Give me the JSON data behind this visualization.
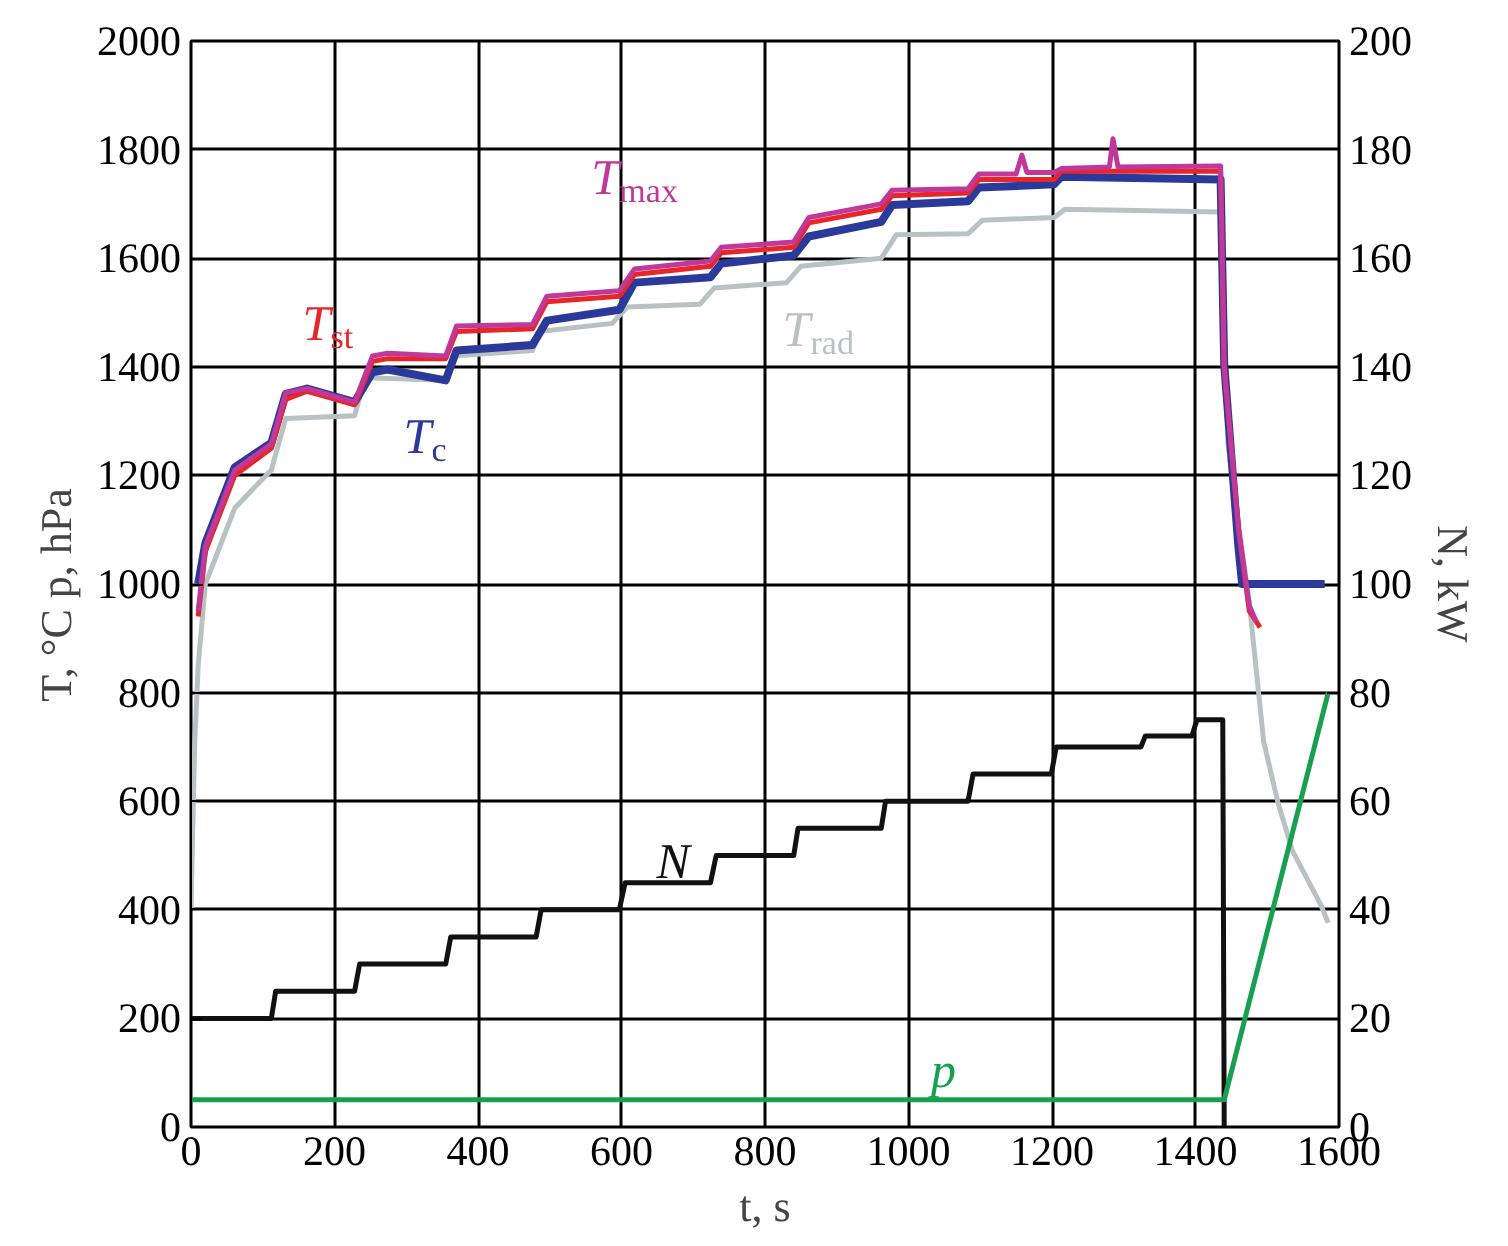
{
  "chart_data": {
    "type": "line",
    "xlabel": "t, s",
    "ylabel": "T, °C   p, hPa",
    "y2label": "N, kW",
    "xlim": [
      0,
      1600
    ],
    "xticks": [
      0,
      200,
      400,
      600,
      800,
      1000,
      1200,
      1400,
      1600
    ],
    "ylim": [
      0,
      2000
    ],
    "yticks": [
      0,
      200,
      400,
      600,
      800,
      1000,
      1200,
      1400,
      1600,
      1800,
      2000
    ],
    "y2lim": [
      0,
      200
    ],
    "y2ticks": [
      0,
      20,
      40,
      60,
      80,
      100,
      120,
      140,
      160,
      180,
      200
    ],
    "grid": true,
    "series": [
      {
        "name": "T$_{rad}$",
        "color": "#b8c2c2",
        "x": [
          0,
          5,
          10,
          20,
          61,
          112,
          132,
          228,
          243,
          355,
          365,
          476,
          486,
          587,
          608,
          709,
          729,
          830,
          850,
          962,
          983,
          1083,
          1103,
          1203,
          1218,
          1435,
          1445,
          1475,
          1495,
          1515,
          1535,
          1575,
          1585
        ],
        "values": [
          400,
          700,
          850,
          1000,
          1140,
          1210,
          1305,
          1310,
          1380,
          1375,
          1420,
          1430,
          1465,
          1480,
          1510,
          1515,
          1545,
          1555,
          1585,
          1600,
          1643,
          1645,
          1670,
          1675,
          1690,
          1685,
          1260,
          965,
          710,
          597,
          509,
          408,
          376
        ]
      },
      {
        "name": "T$_{c}$",
        "color": "#2b3a9a",
        "x": [
          10,
          20,
          61,
          112,
          132,
          162,
          228,
          253,
          274,
          355,
          370,
          476,
          496,
          597,
          618,
          724,
          739,
          840,
          861,
          962,
          977,
          1083,
          1098,
          1203,
          1213,
          1435,
          1440,
          1460,
          1465,
          1580
        ],
        "values": [
          1000,
          1075,
          1215,
          1260,
          1350,
          1360,
          1335,
          1390,
          1395,
          1375,
          1430,
          1440,
          1485,
          1505,
          1555,
          1565,
          1590,
          1605,
          1640,
          1667,
          1698,
          1705,
          1730,
          1736,
          1750,
          1745,
          1405,
          1065,
          1000,
          1000
        ]
      },
      {
        "name": "T$_{st}$",
        "color": "#e8262a",
        "x": [
          10,
          20,
          61,
          112,
          132,
          162,
          228,
          253,
          274,
          355,
          370,
          476,
          496,
          597,
          618,
          724,
          739,
          840,
          861,
          962,
          977,
          1083,
          1098,
          1203,
          1213,
          1435,
          1440,
          1460,
          1475,
          1490
        ],
        "values": [
          940,
          1060,
          1200,
          1250,
          1340,
          1355,
          1330,
          1410,
          1415,
          1415,
          1465,
          1470,
          1520,
          1530,
          1570,
          1585,
          1610,
          1620,
          1665,
          1690,
          1715,
          1720,
          1745,
          1745,
          1760,
          1760,
          1400,
          1100,
          950,
          920
        ]
      },
      {
        "name": "T$_{max}$",
        "color": "#c0399a",
        "x": [
          10,
          20,
          61,
          112,
          132,
          162,
          228,
          253,
          274,
          355,
          370,
          476,
          496,
          597,
          618,
          724,
          739,
          840,
          861,
          962,
          977,
          1083,
          1098,
          1150,
          1158,
          1165,
          1203,
          1213,
          1280,
          1285,
          1292,
          1435,
          1440,
          1460,
          1475,
          1485
        ],
        "values": [
          950,
          1070,
          1210,
          1258,
          1352,
          1360,
          1335,
          1420,
          1425,
          1420,
          1475,
          1478,
          1530,
          1540,
          1580,
          1595,
          1620,
          1630,
          1675,
          1700,
          1725,
          1728,
          1755,
          1755,
          1790,
          1758,
          1758,
          1765,
          1768,
          1820,
          1768,
          1770,
          1400,
          1100,
          960,
          930
        ]
      },
      {
        "name": "N",
        "color": "#111111",
        "axis": "y2",
        "x": [
          0,
          112,
          118,
          228,
          235,
          355,
          362,
          481,
          488,
          597,
          605,
          724,
          732,
          840,
          846,
          962,
          968,
          1083,
          1090,
          1199,
          1206,
          1324,
          1330,
          1395,
          1402,
          1438,
          1440
        ],
        "values": [
          20,
          20,
          25,
          25,
          30,
          30,
          35,
          35,
          40,
          40,
          45,
          45,
          50,
          50,
          55,
          55,
          60,
          60,
          65,
          65,
          70,
          70,
          72,
          72,
          75,
          75,
          0
        ]
      },
      {
        "name": "p",
        "color": "#18a050",
        "x": [
          0,
          1440,
          1585
        ],
        "values": [
          50,
          50,
          800
        ]
      }
    ]
  }
}
